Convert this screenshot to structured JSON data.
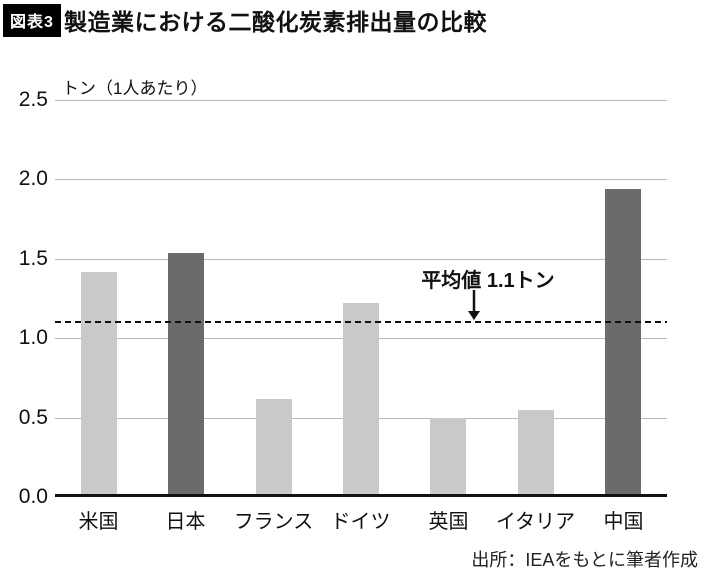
{
  "header": {
    "badge": "図表3",
    "title": "製造業における二酸化炭素排出量の比較"
  },
  "chart_data": {
    "type": "bar",
    "title": "製造業における二酸化炭素排出量の比較",
    "unit_label": "トン（1人あたり）",
    "categories": [
      "米国",
      "日本",
      "フランス",
      "ドイツ",
      "英国",
      "イタリア",
      "中国"
    ],
    "values": [
      1.4,
      1.52,
      0.6,
      1.2,
      0.48,
      0.53,
      1.92
    ],
    "bar_styles": [
      "light",
      "dark",
      "light",
      "light",
      "light",
      "light",
      "dark"
    ],
    "ylim": [
      0,
      2.5
    ],
    "y_ticks": [
      2.5,
      2.0,
      1.5,
      1.0,
      0.5,
      0.0
    ],
    "grid": true,
    "legend": "none",
    "average_line": {
      "value": 1.1,
      "label": "平均値 1.1トン"
    },
    "colors": {
      "bar_light": "#c9c9cb",
      "bar_dark": "#6b6b6b",
      "gridline": "#b8b8b8",
      "axis": "#111111",
      "average_line": "#111111"
    }
  },
  "footer": {
    "source": "出所：IEAをもとに筆者作成"
  }
}
